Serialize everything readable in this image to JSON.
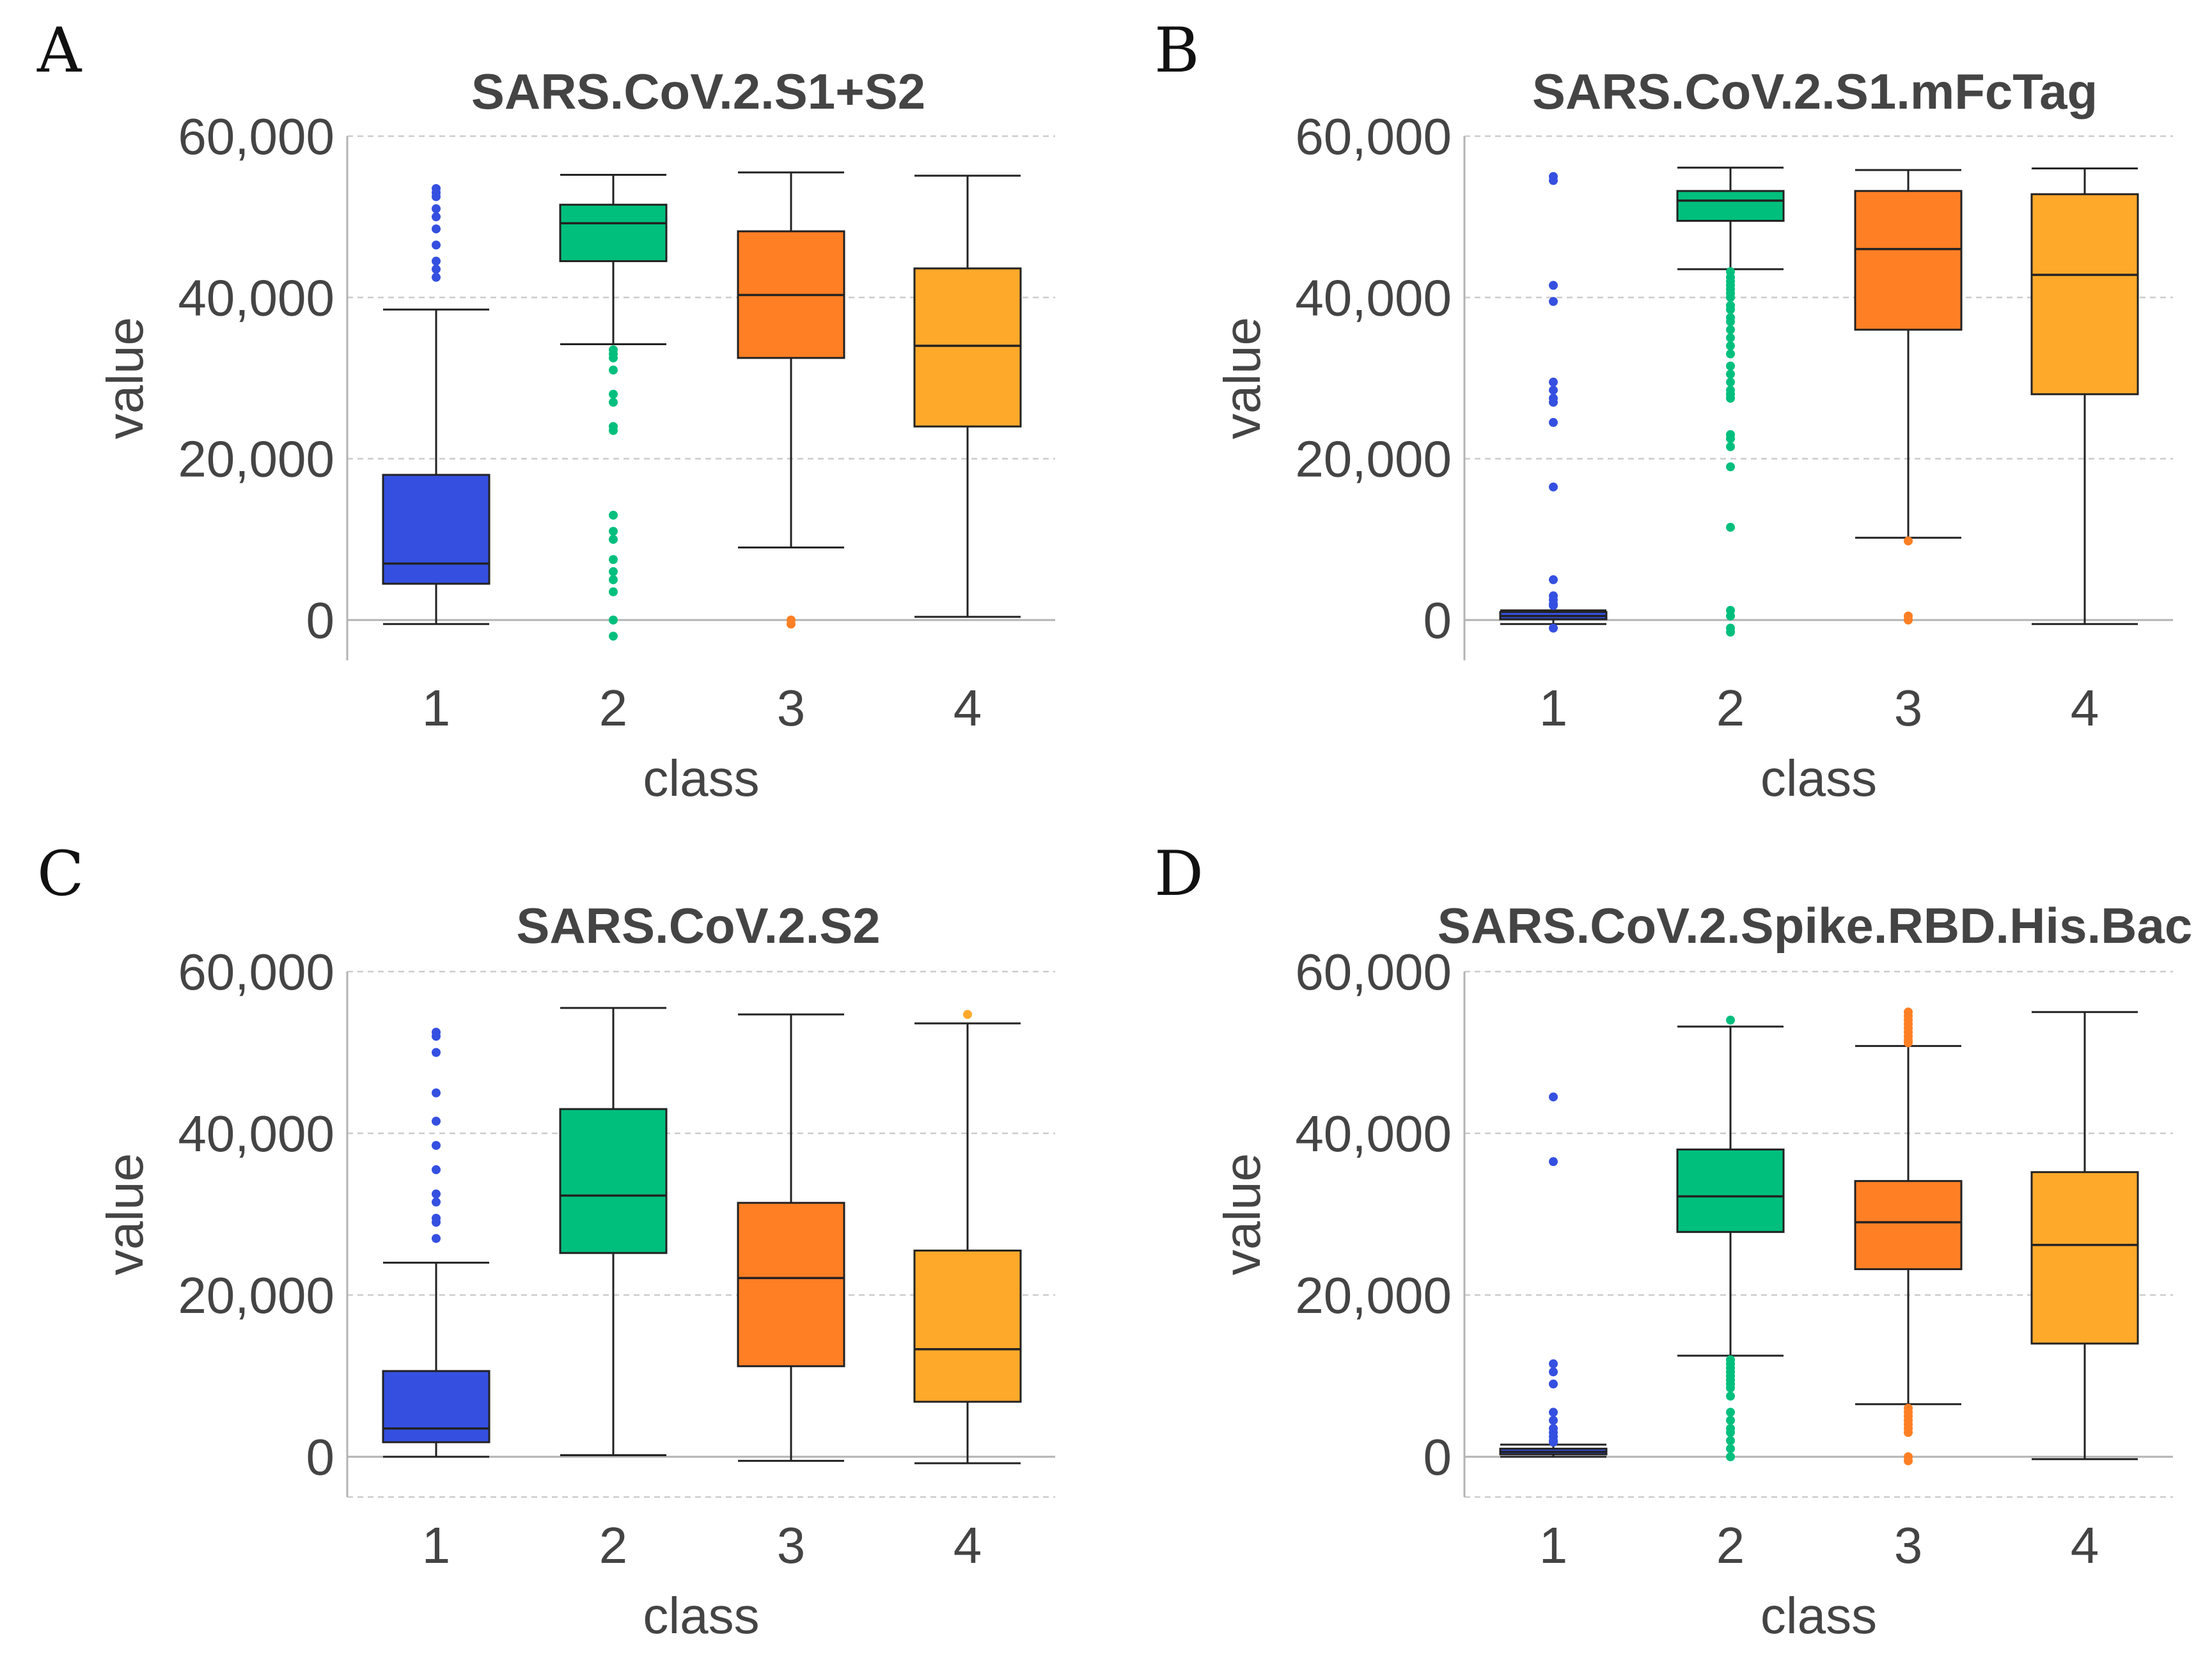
{
  "colors": {
    "class1": "#3550E0",
    "class2": "#00BF7D",
    "class3": "#FF7F24",
    "class4": "#FFA92B",
    "grid": "#cccccc",
    "axis": "#b3b3b3",
    "whisker": "#222222"
  },
  "chart_data": [
    {
      "panel": "A",
      "type": "boxplot",
      "title": "SARS.CoV.2.S1+S2",
      "xlabel": "class",
      "ylabel": "value",
      "categories": [
        "1",
        "2",
        "3",
        "4"
      ],
      "yticks": [
        0,
        20000,
        40000,
        60000
      ],
      "ytick_labels": [
        "0",
        "20,000",
        "40,000",
        "60,000"
      ],
      "ylim": [
        -5000,
        60000
      ],
      "boxes": [
        {
          "class": "1",
          "q1": 4500,
          "median": 7000,
          "q3": 18000,
          "whisker_low": -500,
          "whisker_high": 38500,
          "outliers": [
            42500,
            43500,
            44500,
            46500,
            48500,
            50000,
            51000,
            52500,
            53000,
            53500
          ]
        },
        {
          "class": "2",
          "q1": 44500,
          "median": 49200,
          "q3": 51500,
          "whisker_low": 34200,
          "whisker_high": 55200,
          "outliers": [
            33500,
            33000,
            32500,
            31000,
            28000,
            27000,
            24000,
            23500,
            13000,
            11000,
            10000,
            7500,
            6000,
            5000,
            3500,
            0,
            -2000
          ]
        },
        {
          "class": "3",
          "q1": 32500,
          "median": 40300,
          "q3": 48200,
          "whisker_low": 9000,
          "whisker_high": 55500,
          "outliers": [
            0,
            -500
          ]
        },
        {
          "class": "4",
          "q1": 24000,
          "median": 34000,
          "q3": 43600,
          "whisker_low": 400,
          "whisker_high": 55100,
          "outliers": []
        }
      ]
    },
    {
      "panel": "B",
      "type": "boxplot",
      "title": "SARS.CoV.2.S1.mFcTag",
      "xlabel": "class",
      "ylabel": "value",
      "categories": [
        "1",
        "2",
        "3",
        "4"
      ],
      "yticks": [
        0,
        20000,
        40000,
        60000
      ],
      "ytick_labels": [
        "0",
        "20,000",
        "40,000",
        "60,000"
      ],
      "ylim": [
        -5000,
        60000
      ],
      "boxes": [
        {
          "class": "1",
          "q1": 100,
          "median": 500,
          "q3": 1000,
          "whisker_low": -500,
          "whisker_high": 1200,
          "outliers": [
            55000,
            54500,
            41500,
            39500,
            29500,
            28500,
            27500,
            27000,
            24500,
            16500,
            5000,
            3000,
            2500,
            2000,
            1800,
            -1000
          ]
        },
        {
          "class": "2",
          "q1": 49500,
          "median": 52000,
          "q3": 53200,
          "whisker_low": 43500,
          "whisker_high": 56100,
          "outliers": [
            43200,
            42500,
            42000,
            41500,
            41000,
            40500,
            40000,
            39000,
            38500,
            37500,
            37000,
            36000,
            35000,
            34000,
            33000,
            31500,
            30500,
            29500,
            28500,
            28000,
            27500,
            23000,
            22500,
            21500,
            19000,
            11500,
            1200,
            500,
            -1000,
            -1500
          ]
        },
        {
          "class": "3",
          "q1": 36000,
          "median": 46000,
          "q3": 53200,
          "whisker_low": 10200,
          "whisker_high": 55800,
          "outliers": [
            9800,
            500,
            0
          ]
        },
        {
          "class": "4",
          "q1": 28000,
          "median": 42800,
          "q3": 52800,
          "whisker_low": -500,
          "whisker_high": 56000,
          "outliers": []
        }
      ]
    },
    {
      "panel": "C",
      "type": "boxplot",
      "title": "SARS.CoV.2.S2",
      "xlabel": "class",
      "ylabel": "value",
      "categories": [
        "1",
        "2",
        "3",
        "4"
      ],
      "yticks": [
        0,
        20000,
        40000,
        60000
      ],
      "ytick_labels": [
        "0",
        "20,000",
        "40,000",
        "60,000"
      ],
      "ylim": [
        -5000,
        60000
      ],
      "boxes": [
        {
          "class": "1",
          "q1": 1800,
          "median": 3500,
          "q3": 10600,
          "whisker_low": 0,
          "whisker_high": 24000,
          "outliers": [
            52500,
            52000,
            50000,
            45000,
            41500,
            38500,
            35500,
            32500,
            31500,
            29500,
            29000,
            27000
          ]
        },
        {
          "class": "2",
          "q1": 25200,
          "median": 32300,
          "q3": 43000,
          "whisker_low": 200,
          "whisker_high": 55500,
          "outliers": []
        },
        {
          "class": "3",
          "q1": 11200,
          "median": 22100,
          "q3": 31400,
          "whisker_low": -500,
          "whisker_high": 54700,
          "outliers": []
        },
        {
          "class": "4",
          "q1": 6800,
          "median": 13300,
          "q3": 25500,
          "whisker_low": -800,
          "whisker_high": 53600,
          "outliers": [
            54700
          ]
        }
      ]
    },
    {
      "panel": "D",
      "type": "boxplot",
      "title": "SARS.CoV.2.Spike.RBD.His.Bac",
      "xlabel": "class",
      "ylabel": "value",
      "categories": [
        "1",
        "2",
        "3",
        "4"
      ],
      "yticks": [
        0,
        20000,
        40000,
        60000
      ],
      "ytick_labels": [
        "0",
        "20,000",
        "40,000",
        "60,000"
      ],
      "ylim": [
        -5000,
        60000
      ],
      "boxes": [
        {
          "class": "1",
          "q1": 300,
          "median": 600,
          "q3": 1000,
          "whisker_low": 0,
          "whisker_high": 1500,
          "outliers": [
            44500,
            36500,
            11500,
            10500,
            9000,
            5500,
            4500,
            3500,
            3000,
            2500,
            2000,
            1800
          ]
        },
        {
          "class": "2",
          "q1": 27800,
          "median": 32200,
          "q3": 38000,
          "whisker_low": 12500,
          "whisker_high": 53200,
          "outliers": [
            54000,
            12000,
            11500,
            11000,
            10500,
            10000,
            9500,
            9000,
            8500,
            7500,
            5500,
            4500,
            3500,
            3000,
            2000,
            1000,
            0
          ]
        },
        {
          "class": "3",
          "q1": 23200,
          "median": 29000,
          "q3": 34100,
          "whisker_low": 6500,
          "whisker_high": 50800,
          "outliers": [
            55000,
            54500,
            54000,
            53500,
            53000,
            52500,
            52000,
            51500,
            51200,
            6000,
            5500,
            5000,
            4500,
            4000,
            3500,
            3000,
            0,
            -500
          ]
        },
        {
          "class": "4",
          "q1": 14000,
          "median": 26200,
          "q3": 35200,
          "whisker_low": -300,
          "whisker_high": 55000,
          "outliers": []
        }
      ]
    }
  ]
}
